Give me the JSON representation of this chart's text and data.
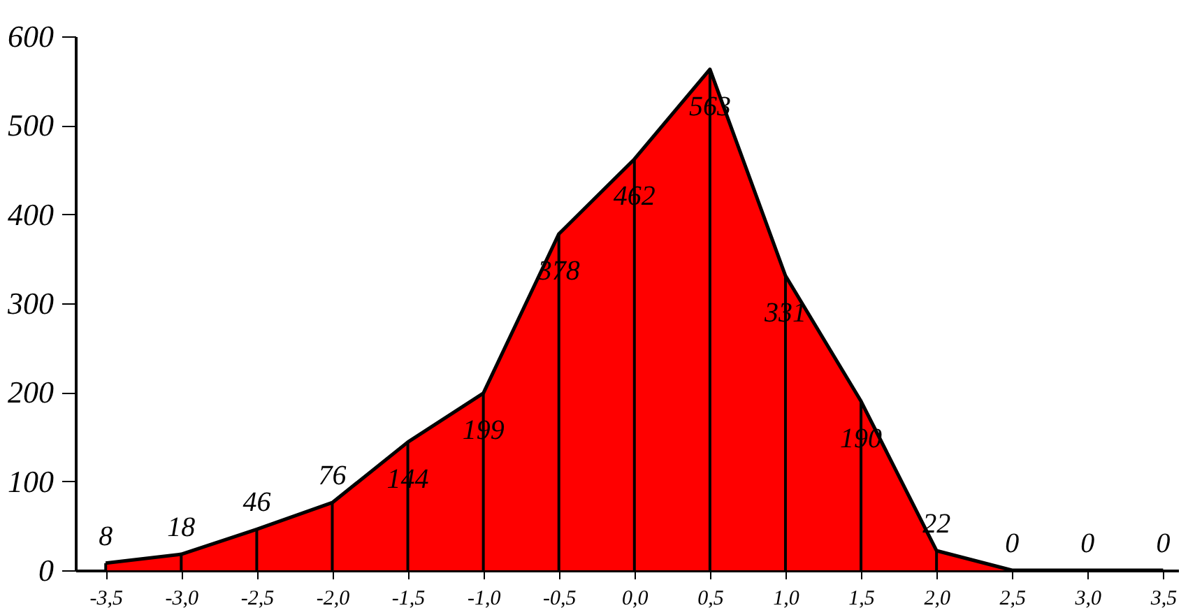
{
  "chart_data": {
    "type": "area",
    "x": [
      -3.5,
      -3.0,
      -2.5,
      -2.0,
      -1.5,
      -1.0,
      -0.5,
      0.0,
      0.5,
      1.0,
      1.5,
      2.0,
      2.5,
      3.0,
      3.5
    ],
    "series": [
      {
        "color": "#ff0000",
        "values": [
          8,
          18,
          46,
          76,
          144,
          199,
          378,
          462,
          563,
          331,
          190,
          22,
          0,
          0,
          0
        ]
      }
    ],
    "xlim": [
      -3.7,
      3.6
    ],
    "ylim": [
      0,
      600
    ],
    "xticks": [
      {
        "value": -3.5,
        "label": "-3,5"
      },
      {
        "value": -3.0,
        "label": "-3,0"
      },
      {
        "value": -2.5,
        "label": "-2,5"
      },
      {
        "value": -2.0,
        "label": "-2,0"
      },
      {
        "value": -1.5,
        "label": "-1,5"
      },
      {
        "value": -1.0,
        "label": "-1,0"
      },
      {
        "value": -0.5,
        "label": "-0,5"
      },
      {
        "value": 0.0,
        "label": "0,0"
      },
      {
        "value": 0.5,
        "label": "0,5"
      },
      {
        "value": 1.0,
        "label": "1,0"
      },
      {
        "value": 1.5,
        "label": "1,5"
      },
      {
        "value": 2.0,
        "label": "2,0"
      },
      {
        "value": 2.5,
        "label": "2,5"
      },
      {
        "value": 3.0,
        "label": "3,0"
      },
      {
        "value": 3.5,
        "label": "3,5"
      }
    ],
    "yticks": [
      0,
      100,
      200,
      300,
      400,
      500,
      600
    ],
    "data_labels": true,
    "grid": "x"
  }
}
